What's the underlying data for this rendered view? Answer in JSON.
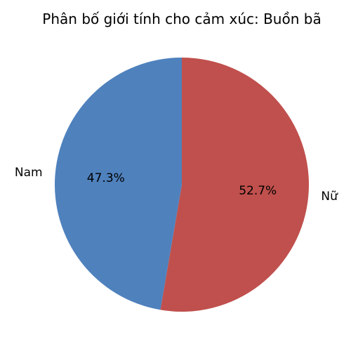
{
  "chart_data": {
    "type": "pie",
    "title": "Phân bố giới tính cho cảm xúc: Buồn bã",
    "slices": [
      {
        "label": "Nữ",
        "value": 52.7,
        "pct_label": "52.7%",
        "color": "#c0504d"
      },
      {
        "label": "Nam",
        "value": 47.3,
        "pct_label": "47.3%",
        "color": "#4f81bd"
      }
    ],
    "start_angle": "12 o'clock",
    "direction": "clockwise",
    "legend": "none"
  }
}
